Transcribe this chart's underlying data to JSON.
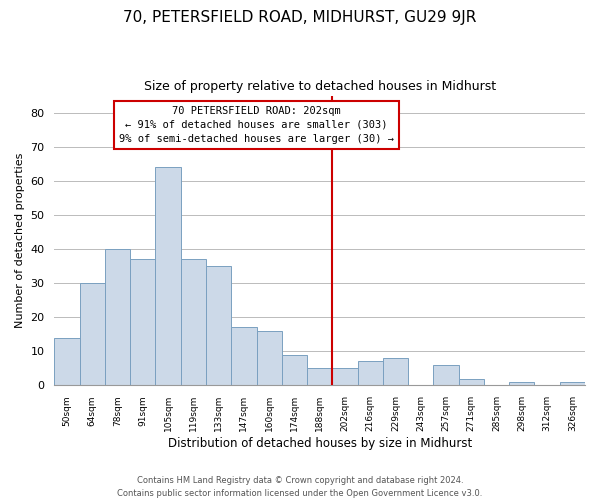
{
  "title": "70, PETERSFIELD ROAD, MIDHURST, GU29 9JR",
  "subtitle": "Size of property relative to detached houses in Midhurst",
  "xlabel": "Distribution of detached houses by size in Midhurst",
  "ylabel": "Number of detached properties",
  "bar_labels": [
    "50sqm",
    "64sqm",
    "78sqm",
    "91sqm",
    "105sqm",
    "119sqm",
    "133sqm",
    "147sqm",
    "160sqm",
    "174sqm",
    "188sqm",
    "202sqm",
    "216sqm",
    "229sqm",
    "243sqm",
    "257sqm",
    "271sqm",
    "285sqm",
    "298sqm",
    "312sqm",
    "326sqm"
  ],
  "bar_heights": [
    14,
    30,
    40,
    37,
    64,
    37,
    35,
    17,
    16,
    9,
    5,
    5,
    7,
    8,
    0,
    6,
    2,
    0,
    1,
    0,
    1
  ],
  "bar_color": "#ccd9e8",
  "bar_edge_color": "#7aa0c0",
  "vline_color": "#cc0000",
  "vline_index": 11,
  "annotation_title": "70 PETERSFIELD ROAD: 202sqm",
  "annotation_line1": "← 91% of detached houses are smaller (303)",
  "annotation_line2": "9% of semi-detached houses are larger (30) →",
  "annotation_box_color": "#ffffff",
  "annotation_box_edge": "#cc0000",
  "ylim": [
    0,
    85
  ],
  "footer1": "Contains HM Land Registry data © Crown copyright and database right 2024.",
  "footer2": "Contains public sector information licensed under the Open Government Licence v3.0.",
  "bg_color": "#ffffff",
  "grid_color": "#bbbbbb",
  "title_fontsize": 11,
  "subtitle_fontsize": 9,
  "bar_width": 1.0
}
